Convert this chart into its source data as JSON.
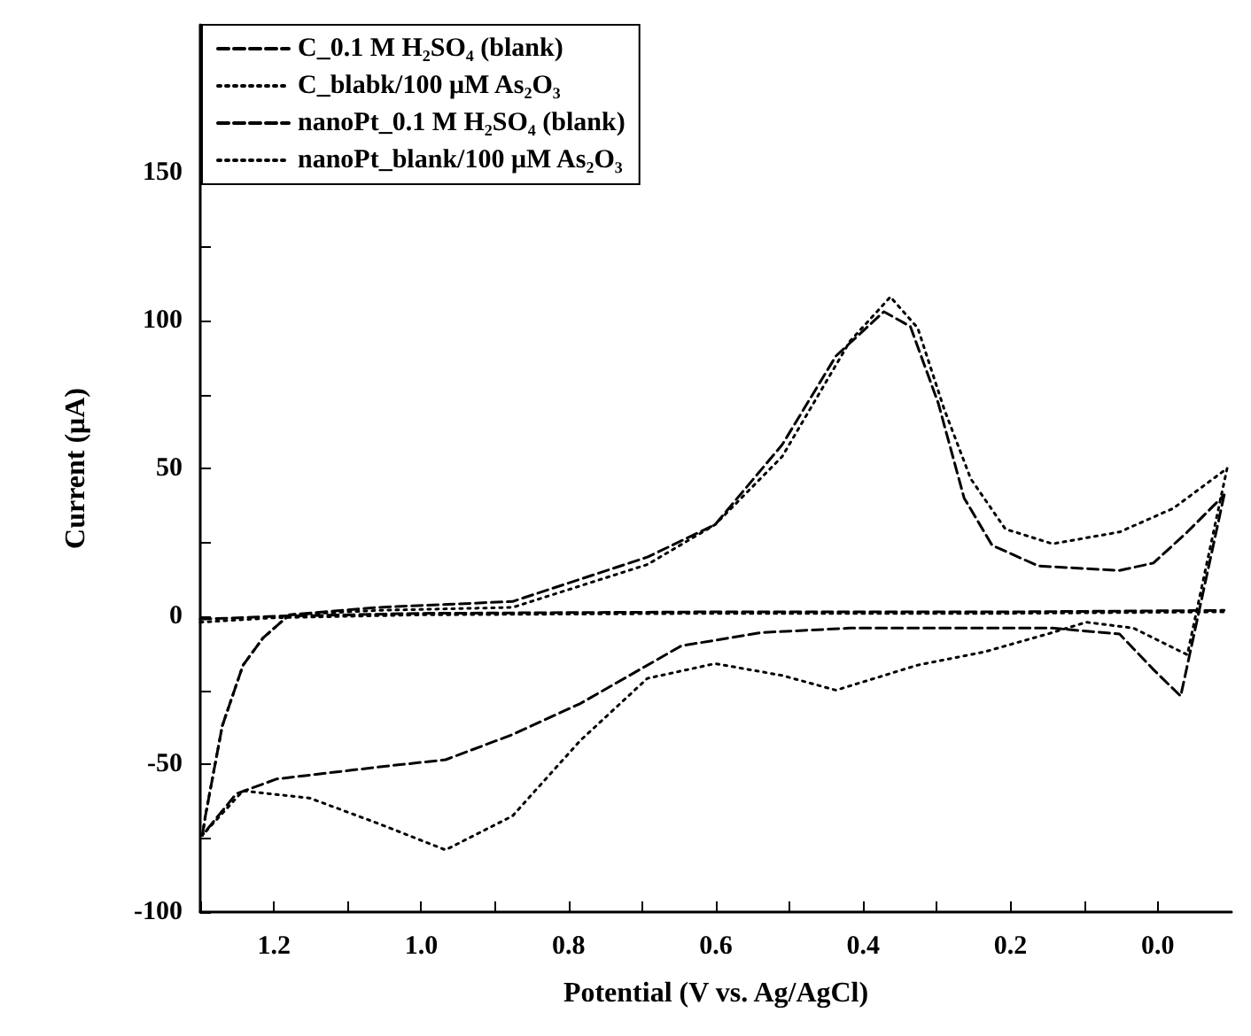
{
  "chart_data": {
    "type": "line",
    "xlabel": "Potential (V vs. Ag/AgCl)",
    "ylabel": "Current (μA)",
    "xlim": [
      1.3,
      -0.1
    ],
    "ylim": [
      -100,
      200
    ],
    "xticks": [
      {
        "value": 1.3,
        "label": null
      },
      1.2,
      {
        "value": 1.1,
        "label": null
      },
      {
        "value": 1,
        "label": "1.0"
      },
      {
        "value": 0.9,
        "label": null
      },
      0.8,
      {
        "value": 0.7,
        "label": null
      },
      0.6,
      {
        "value": 0.5,
        "label": null
      },
      0.4,
      {
        "value": 0.3,
        "label": null
      },
      0.2,
      {
        "value": 0.1,
        "label": null
      },
      {
        "value": 0,
        "label": "0.0"
      }
    ],
    "yticks": [
      -100,
      {
        "value": -75,
        "label": null
      },
      -50,
      {
        "value": -25,
        "label": null
      },
      0,
      {
        "value": 25,
        "label": null
      },
      50,
      {
        "value": 75,
        "label": null
      },
      100,
      {
        "value": 125,
        "label": null
      },
      150
    ],
    "legend": "top left",
    "grid": false,
    "marker": "none",
    "series": [
      {
        "name": "C_0.1 M H₂SO₄ (blank)",
        "color": "#000000",
        "line_style": "dashed",
        "x": [
          1.297,
          1.293,
          1.27,
          1.242,
          1.215,
          1.179,
          1.059,
          0.876,
          0.693,
          0.601,
          0.51,
          0.437,
          0.372,
          0.336,
          0.298,
          0.263,
          0.225,
          0.162,
          0.052,
          0.006,
          -0.04,
          -0.09
        ],
        "values": [
          -74,
          -67.5,
          -37,
          -16.6,
          -7.4,
          0.5,
          3,
          5,
          20,
          31,
          58,
          88,
          103,
          98,
          72,
          40,
          24,
          17,
          15.5,
          18,
          28.5,
          41
        ]
      },
      {
        "color": "#000000",
        "line_style": "dashed",
        "x": [
          -0.09,
          -0.031,
          0.006,
          0.052,
          0.143,
          0.418,
          0.538,
          0.647,
          0.784,
          0.876,
          0.967,
          1.059,
          1.196,
          1.251,
          1.297
        ],
        "values": [
          41,
          -27,
          -18,
          -6,
          -4,
          -4,
          -5.5,
          -10,
          -29.5,
          -40,
          -48.5,
          -51,
          -55,
          -60,
          -74
        ]
      },
      {
        "name": "C_blabk/100 μM As₂O₃",
        "color": "#000000",
        "line_style": "dotted",
        "x": [
          1.297,
          1.293,
          1.27,
          1.242,
          1.215,
          1.179,
          1.059,
          0.876,
          0.693,
          0.601,
          0.51,
          0.418,
          0.363,
          0.326,
          0.29,
          0.254,
          0.207,
          0.143,
          0.052,
          -0.021,
          -0.094
        ],
        "values": [
          -74,
          -67.5,
          -37,
          -16.6,
          -7.4,
          0.5,
          2,
          3,
          17.5,
          31,
          54,
          93,
          108,
          97.5,
          70,
          46.5,
          29.5,
          24.5,
          28.5,
          36.5,
          50
        ]
      },
      {
        "color": "#000000",
        "line_style": "dotted",
        "x": [
          -0.094,
          -0.04,
          0.033,
          0.097,
          0.143,
          0.235,
          0.326,
          0.437,
          0.51,
          0.601,
          0.693,
          0.784,
          0.876,
          0.967,
          1.059,
          1.151,
          1.242,
          1.297
        ],
        "values": [
          50,
          -13,
          -4,
          -2,
          -5.5,
          -12,
          -16.5,
          -25,
          -20,
          -16,
          -21,
          -42,
          -67.5,
          -79,
          -70,
          -61.5,
          -59,
          -74
        ]
      },
      {
        "name": "nanoPt_0.1 M H₂SO₄ (blank)",
        "color": "#000000",
        "line_style": "dashed",
        "x": [
          1.3,
          1.2,
          1.0,
          0.6,
          0.2,
          -0.09
        ],
        "values": [
          -1,
          0,
          1,
          1.5,
          1.5,
          2
        ]
      },
      {
        "name": "nanoPt_blank/100 μM As₂O₃",
        "color": "#000000",
        "line_style": "dotted",
        "x": [
          1.3,
          1.2,
          1.0,
          0.6,
          0.2,
          -0.09
        ],
        "values": [
          -2,
          -0.5,
          0.5,
          1,
          1,
          1.5
        ]
      }
    ]
  }
}
